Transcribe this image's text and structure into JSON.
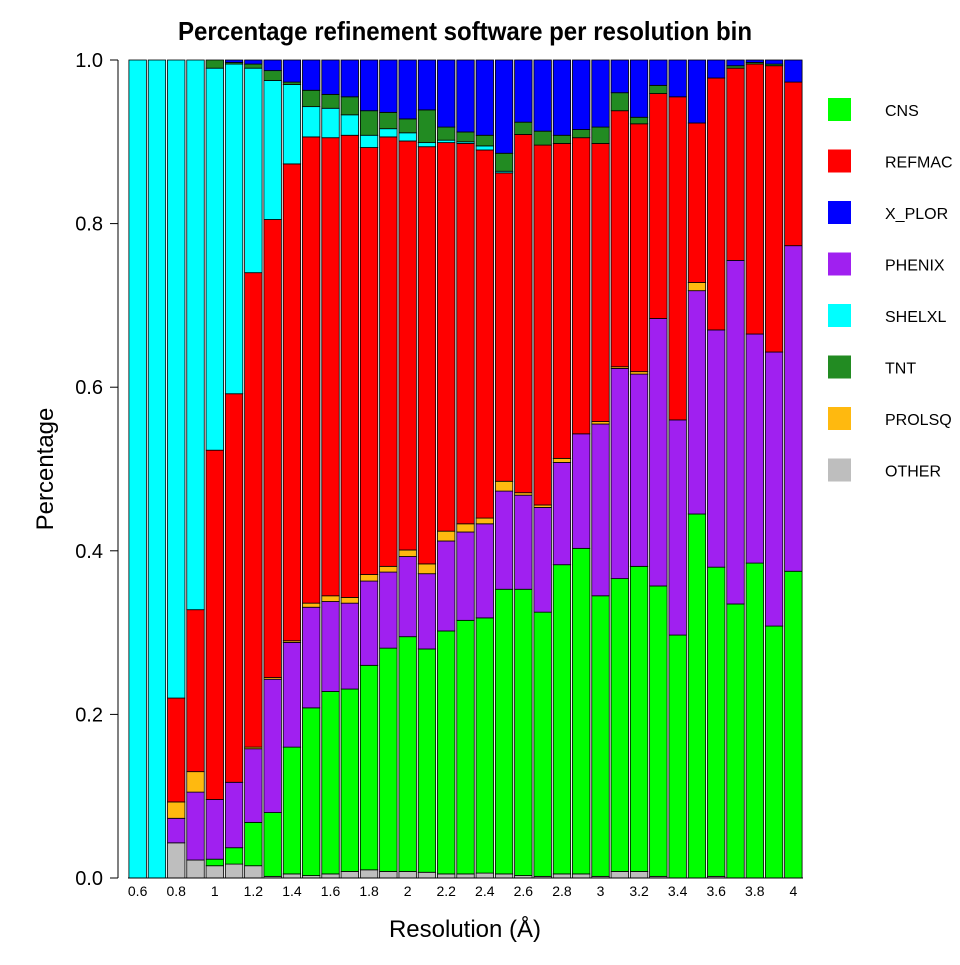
{
  "chart_data": {
    "type": "bar",
    "stacked": true,
    "title": "Percentage refinement software per resolution bin",
    "xlabel": "Resolution (Å)",
    "ylabel": "Percentage",
    "ylim": [
      0,
      1
    ],
    "yticks": [
      "0.0",
      "0.2",
      "0.4",
      "0.6",
      "0.8",
      "1.0"
    ],
    "xticks": [
      "0.6",
      "0.8",
      "1",
      "1.2",
      "1.4",
      "1.6",
      "1.8",
      "2",
      "2.2",
      "2.4",
      "2.6",
      "2.8",
      "3",
      "3.2",
      "3.4",
      "3.6",
      "3.8",
      "4"
    ],
    "categories": [
      "0.6",
      "0.7",
      "0.8",
      "0.9",
      "1.0",
      "1.1",
      "1.2",
      "1.3",
      "1.4",
      "1.5",
      "1.6",
      "1.7",
      "1.8",
      "1.9",
      "2.0",
      "2.1",
      "2.2",
      "2.3",
      "2.4",
      "2.5",
      "2.6",
      "2.7",
      "2.8",
      "2.9",
      "3.0",
      "3.1",
      "3.2",
      "3.3",
      "3.4",
      "3.5",
      "3.6",
      "3.7",
      "3.8",
      "3.9",
      "4.0"
    ],
    "legend_position": "right",
    "series": [
      {
        "name": "OTHER",
        "color": "#bebebe",
        "values": [
          0,
          0,
          0.043,
          0.022,
          0.015,
          0.017,
          0.015,
          0.002,
          0.005,
          0.003,
          0.005,
          0.008,
          0.01,
          0.008,
          0.008,
          0.007,
          0.005,
          0.005,
          0.006,
          0.005,
          0.003,
          0.002,
          0.005,
          0.005,
          0.002,
          0.008,
          0.008,
          0.002,
          0,
          0,
          0.002,
          0,
          0,
          0,
          0
        ]
      },
      {
        "name": "CNS",
        "color": "#00ff00",
        "values": [
          0,
          0,
          0,
          0,
          0.008,
          0.02,
          0.053,
          0.078,
          0.155,
          0.205,
          0.223,
          0.223,
          0.25,
          0.273,
          0.287,
          0.273,
          0.297,
          0.31,
          0.312,
          0.348,
          0.35,
          0.323,
          0.378,
          0.398,
          0.343,
          0.358,
          0.373,
          0.355,
          0.297,
          0.445,
          0.378,
          0.335,
          0.385,
          0.308,
          0.375
        ]
      },
      {
        "name": "PHENIX",
        "color": "#a020f0",
        "values": [
          0,
          0,
          0.03,
          0.083,
          0.073,
          0.08,
          0.09,
          0.163,
          0.128,
          0.123,
          0.11,
          0.105,
          0.103,
          0.093,
          0.098,
          0.092,
          0.11,
          0.108,
          0.115,
          0.12,
          0.115,
          0.128,
          0.125,
          0.14,
          0.21,
          0.257,
          0.235,
          0.327,
          0.263,
          0.273,
          0.29,
          0.42,
          0.28,
          0.335,
          0.398
        ]
      },
      {
        "name": "PROLSQ",
        "color": "#ffb90f",
        "values": [
          0,
          0,
          0.02,
          0.025,
          0,
          0,
          0.002,
          0.002,
          0.002,
          0.005,
          0.007,
          0.007,
          0.008,
          0.007,
          0.008,
          0.012,
          0.012,
          0.01,
          0.007,
          0.012,
          0.003,
          0.003,
          0.005,
          0,
          0.003,
          0.002,
          0.003,
          0,
          0,
          0.01,
          0,
          0,
          0,
          0,
          0
        ]
      },
      {
        "name": "REFMAC",
        "color": "#ff0000",
        "values": [
          0,
          0,
          0.127,
          0.198,
          0.427,
          0.475,
          0.58,
          0.56,
          0.583,
          0.57,
          0.56,
          0.565,
          0.522,
          0.525,
          0.5,
          0.51,
          0.475,
          0.465,
          0.45,
          0.377,
          0.438,
          0.44,
          0.385,
          0.362,
          0.34,
          0.313,
          0.303,
          0.275,
          0.395,
          0.195,
          0.308,
          0.235,
          0.33,
          0.35,
          0.2
        ]
      },
      {
        "name": "SHELXL",
        "color": "#00ffff",
        "values": [
          1,
          1,
          0.78,
          0.672,
          0.467,
          0.403,
          0.25,
          0.17,
          0.097,
          0.037,
          0.036,
          0.025,
          0.015,
          0.01,
          0.01,
          0.005,
          0.003,
          0.002,
          0.005,
          0.002,
          0,
          0,
          0,
          0,
          0,
          0,
          0,
          0,
          0,
          0,
          0,
          0,
          0,
          0,
          0
        ]
      },
      {
        "name": "TNT",
        "color": "#228b22",
        "values": [
          0,
          0,
          0,
          0,
          0.01,
          0.002,
          0.005,
          0.012,
          0.003,
          0.02,
          0.017,
          0.022,
          0.03,
          0.02,
          0.017,
          0.04,
          0.016,
          0.012,
          0.013,
          0.022,
          0.015,
          0.017,
          0.01,
          0.01,
          0.02,
          0.022,
          0.008,
          0.01,
          0,
          0,
          0,
          0.003,
          0.002,
          0.002,
          0
        ]
      },
      {
        "name": "X_PLOR",
        "color": "#0000ff",
        "values": [
          0,
          0,
          0,
          0,
          0,
          0.003,
          0.005,
          0.013,
          0.03,
          0.037,
          0.042,
          0.045,
          0.062,
          0.064,
          0.072,
          0.061,
          0.082,
          0.088,
          0.092,
          0.114,
          0.076,
          0.087,
          0.092,
          0.085,
          0.082,
          0.04,
          0.07,
          0.031,
          0.045,
          0.077,
          0.022,
          0.007,
          0.003,
          0.005,
          0.027
        ]
      }
    ],
    "legend_order": [
      "CNS",
      "REFMAC",
      "X_PLOR",
      "PHENIX",
      "SHELXL",
      "TNT",
      "PROLSQ",
      "OTHER"
    ]
  }
}
